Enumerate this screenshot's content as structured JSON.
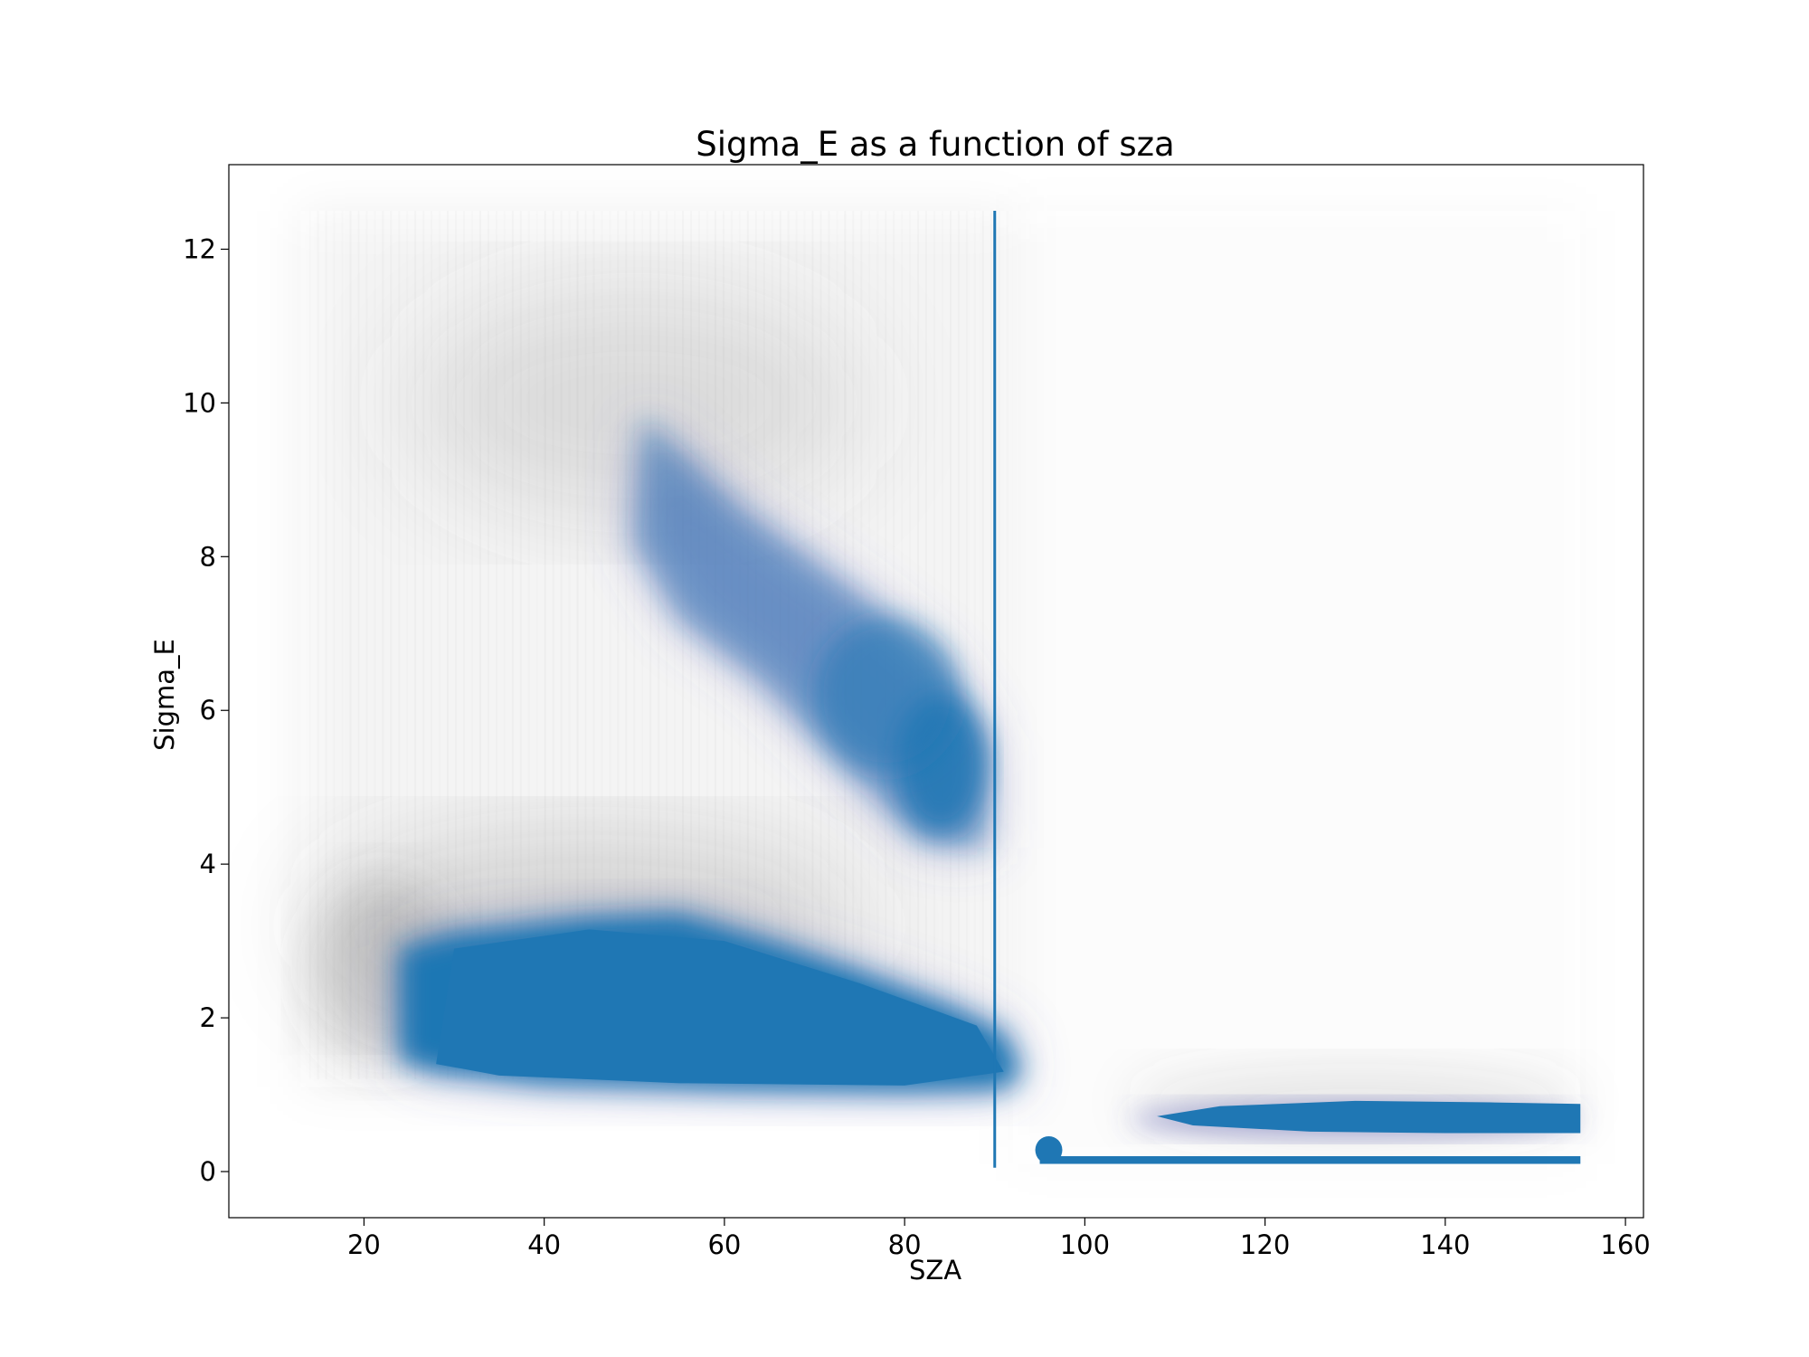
{
  "chart_data": {
    "type": "scatter",
    "title": "Sigma_E as a function of sza",
    "xlabel": "SZA",
    "ylabel": "Sigma_E",
    "xlim": [
      5,
      162
    ],
    "ylim": [
      -0.6,
      13.1
    ],
    "xticks": [
      20,
      40,
      60,
      80,
      100,
      120,
      140,
      160
    ],
    "yticks": [
      0,
      2,
      4,
      6,
      8,
      10,
      12
    ],
    "grid": false,
    "colors": {
      "primary": "#1f77b4",
      "transition": "#5b5fb4",
      "background_points": "#555555",
      "vertical_line": "#1f77b4"
    },
    "series": [
      {
        "role": "background",
        "color": "#555555",
        "regions": [
          {
            "x_range": [
              13,
              92
            ],
            "y_range": [
              1.1,
              12.5
            ],
            "density": "sparse"
          },
          {
            "x_range": [
              92,
              155
            ],
            "y_range": [
              0.1,
              12.5
            ],
            "density": "very sparse"
          }
        ]
      },
      {
        "role": "density-core",
        "color": "#1f77b4",
        "clusters": [
          {
            "center_x": 55,
            "center_y": 2.1,
            "x_range": [
              23,
              93
            ],
            "y_range": [
              1.05,
              3.4
            ]
          },
          {
            "center_x": 70,
            "center_y": 7.0,
            "x_range": [
              48,
              92
            ],
            "y_range": [
              4.2,
              10.0
            ]
          },
          {
            "center_x": 130,
            "center_y": 0.68,
            "x_range": [
              107,
              155
            ],
            "y_range": [
              0.45,
              1.0
            ]
          },
          {
            "center_x": 125,
            "center_y": 0.13,
            "x_range": [
              95,
              155
            ],
            "y_range": [
              0.1,
              0.2
            ]
          }
        ]
      }
    ],
    "vertical_line": {
      "x": 90,
      "y_range": [
        0.05,
        12.5
      ]
    }
  }
}
